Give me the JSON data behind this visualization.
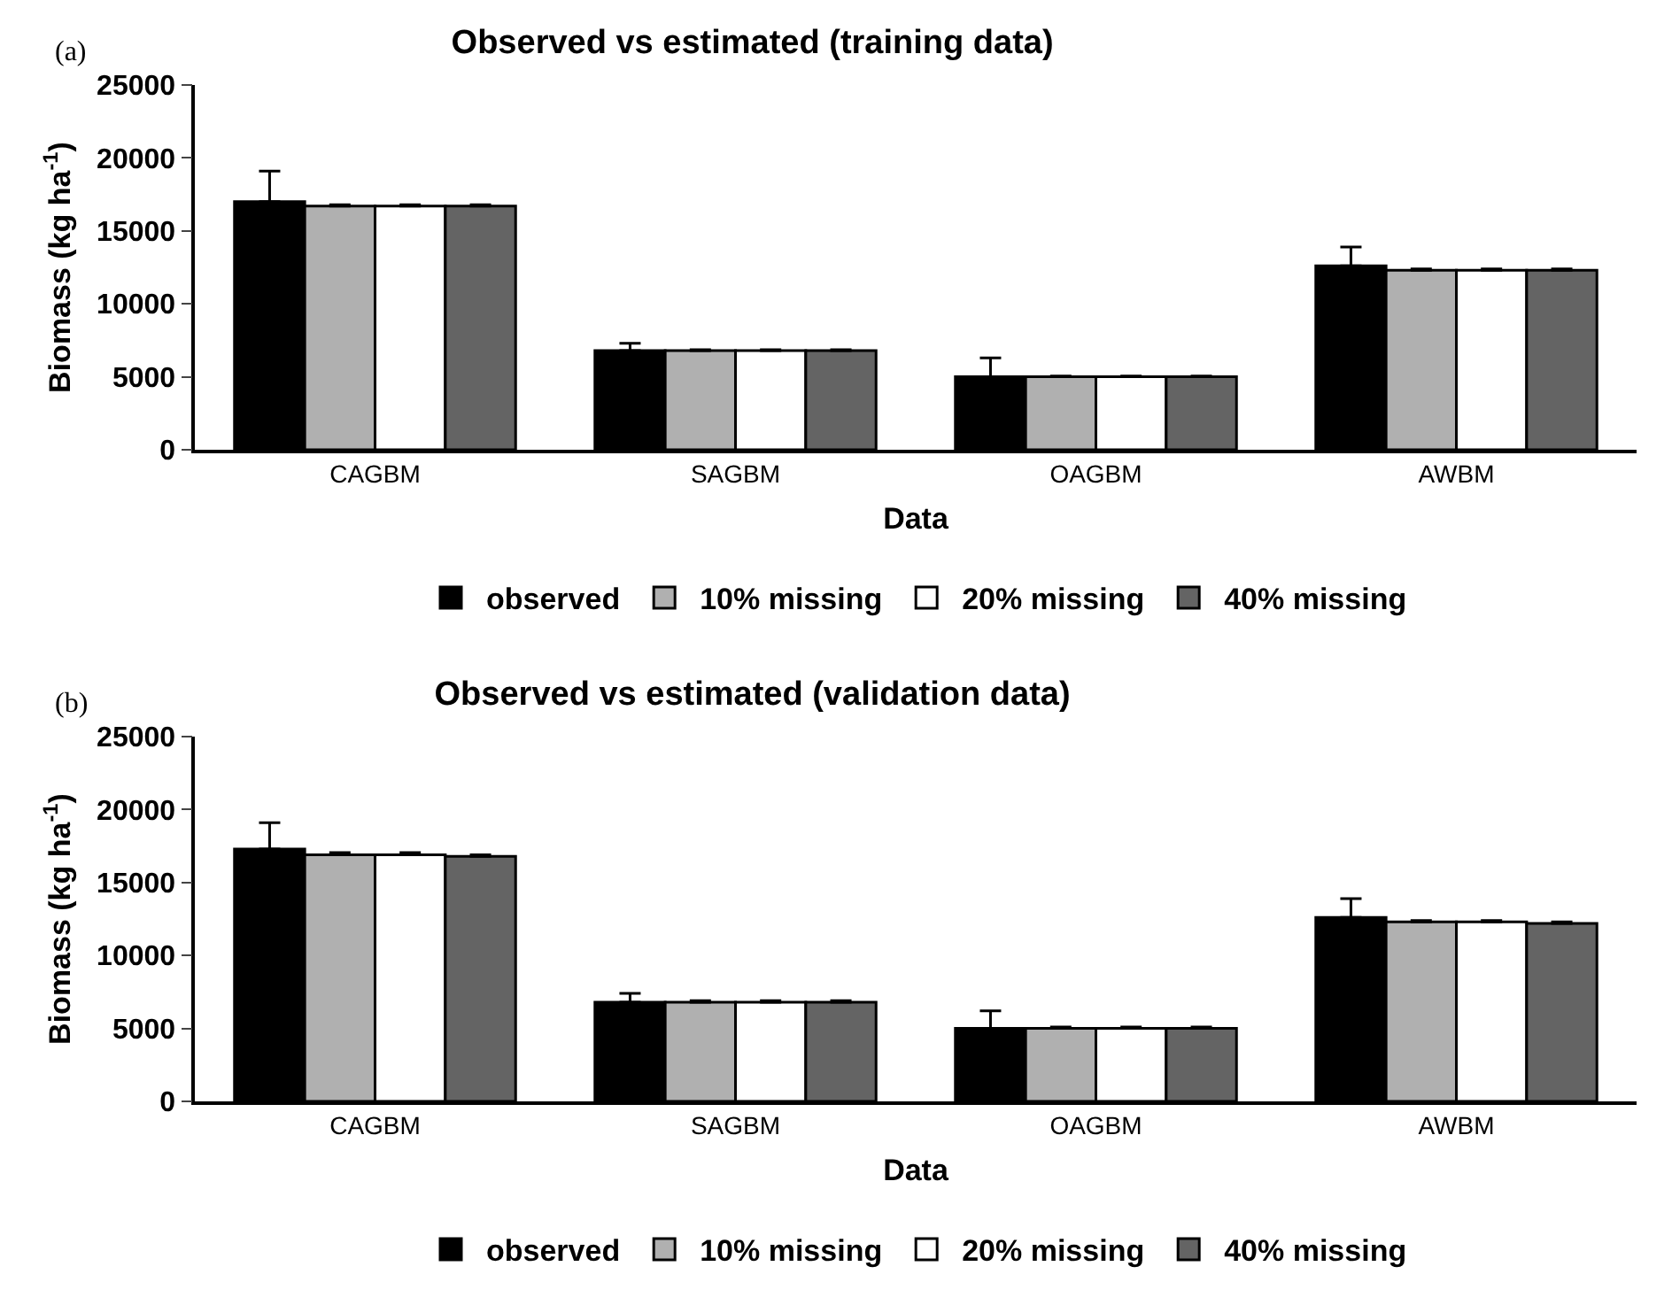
{
  "chart_data": [
    {
      "type": "bar",
      "title": "Observed vs estimated (training data)",
      "xlabel": "Data",
      "ylabel": "Biomass (kg ha$^{-1}$)",
      "annotations": [
        "(a)"
      ],
      "categories": [
        "CAGBM",
        "SAGBM",
        "OAGBM",
        "AWBM"
      ],
      "ylim": [
        0,
        25000
      ],
      "yticks": [
        0,
        5000,
        10000,
        15000,
        20000,
        25000
      ],
      "grid": false,
      "legend": "bottom",
      "series": [
        {
          "name": "observed",
          "color": "#000000",
          "values": [
            17000,
            6800,
            5000,
            12600
          ],
          "errors": [
            2100,
            500,
            1300,
            1300
          ]
        },
        {
          "name": "10% missing",
          "color": "#b0b0b0",
          "values": [
            16700,
            6800,
            5000,
            12300
          ],
          "errors": [
            100,
            50,
            50,
            100
          ]
        },
        {
          "name": "20% missing",
          "color": "#ffffff",
          "values": [
            16700,
            6800,
            5000,
            12300
          ],
          "errors": [
            100,
            50,
            50,
            100
          ]
        },
        {
          "name": "40% missing",
          "color": "#646464",
          "values": [
            16700,
            6800,
            5000,
            12300
          ],
          "errors": [
            100,
            50,
            50,
            100
          ]
        }
      ]
    },
    {
      "type": "bar",
      "title": "Observed vs estimated (validation data)",
      "xlabel": "Data",
      "ylabel": "Biomass (kg ha$^{-1}$)",
      "annotations": [
        "(b)"
      ],
      "categories": [
        "CAGBM",
        "SAGBM",
        "OAGBM",
        "AWBM"
      ],
      "ylim": [
        0,
        25000
      ],
      "yticks": [
        0,
        5000,
        10000,
        15000,
        20000,
        25000
      ],
      "grid": false,
      "legend": "bottom",
      "series": [
        {
          "name": "observed",
          "color": "#000000",
          "values": [
            17300,
            6800,
            5000,
            12600
          ],
          "errors": [
            1800,
            600,
            1200,
            1300
          ]
        },
        {
          "name": "10% missing",
          "color": "#b0b0b0",
          "values": [
            16900,
            6800,
            5000,
            12300
          ],
          "errors": [
            150,
            100,
            100,
            100
          ]
        },
        {
          "name": "20% missing",
          "color": "#ffffff",
          "values": [
            16900,
            6800,
            5000,
            12300
          ],
          "errors": [
            150,
            100,
            100,
            100
          ]
        },
        {
          "name": "40% missing",
          "color": "#646464",
          "values": [
            16800,
            6800,
            5000,
            12200
          ],
          "errors": [
            100,
            100,
            100,
            100
          ]
        }
      ]
    }
  ]
}
